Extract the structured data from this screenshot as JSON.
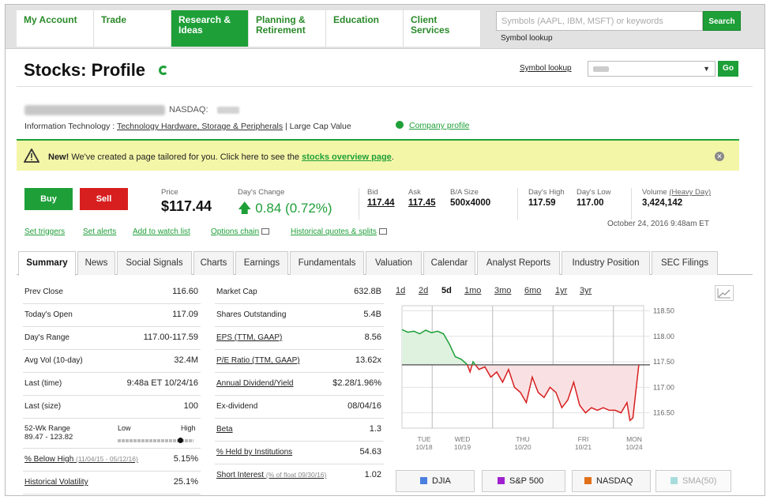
{
  "nav": {
    "items": [
      "My Account",
      "Trade",
      "Research & Ideas",
      "Planning & Retirement",
      "Education",
      "Client Services"
    ],
    "search_placeholder": "Symbols (AAPL, IBM, MSFT) or keywords",
    "search_button": "Search",
    "symbol_lookup": "Symbol lookup"
  },
  "header": {
    "title": "Stocks: Profile",
    "symbol_lookup": "Symbol lookup",
    "go": "Go"
  },
  "company": {
    "exchange": "NASDAQ:",
    "sector": "Information Technology :",
    "industry": "Technology Hardware, Storage & Peripherals",
    "cap": "| Large Cap Value",
    "profile_link": "Company profile"
  },
  "banner": {
    "new": "New!",
    "text": "We've created a page tailored for you. Click here to see the",
    "link": "stocks overview page",
    "end": "."
  },
  "quote": {
    "buy": "Buy",
    "sell": "Sell",
    "price_label": "Price",
    "price": "$117.44",
    "change_label": "Day's Change",
    "change": "0.84 (0.72%)",
    "bid_label": "Bid",
    "bid": "117.44",
    "ask_label": "Ask",
    "ask": "117.45",
    "ba_label": "B/A Size",
    "ba": "500x4000",
    "high_label": "Day's High",
    "high": "117.59",
    "low_label": "Day's Low",
    "low": "117.00",
    "vol_label": "Volume",
    "vol_link": "(Heavy Day)",
    "vol": "3,424,142",
    "date": "October 24, 2016 9:48am ET"
  },
  "links": [
    "Set triggers",
    "Set alerts",
    "Add to watch list",
    "Options chain",
    "Historical quotes & splits"
  ],
  "tabs": [
    "Summary",
    "News",
    "Social Signals",
    "Charts",
    "Earnings",
    "Fundamentals",
    "Valuation",
    "Calendar",
    "Analyst Reports",
    "Industry Position",
    "SEC Filings"
  ],
  "left_table": {
    "prev_close": [
      "Prev Close",
      "116.60"
    ],
    "open": [
      "Today's Open",
      "117.09"
    ],
    "range": [
      "Day's Range",
      "117.00-117.59"
    ],
    "avgvol": [
      "Avg Vol (10-day)",
      "32.4M"
    ],
    "last_time": [
      "Last (time)",
      "9:48a ET 10/24/16"
    ],
    "last_size": [
      "Last (size)",
      "100"
    ],
    "wk52_label": "52-Wk Range",
    "wk52_values": "89.47 - 123.82",
    "wk52_low": "Low",
    "wk52_high": "High",
    "wk52_position": 0.82,
    "below_high": [
      "% Below High",
      "(11/04/15 - 05/12/16)",
      "5.15%"
    ],
    "hist_vol": [
      "Historical Volatility",
      "25.1%"
    ]
  },
  "mid_table": {
    "mktcap": [
      "Market Cap",
      "632.8B"
    ],
    "shares": [
      "Shares Outstanding",
      "5.4B"
    ],
    "eps": [
      "EPS (TTM, GAAP)",
      "8.56"
    ],
    "pe": [
      "P/E Ratio (TTM, GAAP)",
      "13.62x"
    ],
    "div": [
      "Annual Dividend/Yield",
      "$2.28/1.96%"
    ],
    "exdiv": [
      "Ex-dividend",
      "08/04/16"
    ],
    "beta": [
      "Beta",
      "1.3"
    ],
    "held": [
      "% Held by Institutions",
      "54.63"
    ],
    "short": [
      "Short Interest",
      "(% of float 09/30/16)",
      "1.02"
    ]
  },
  "chart_ranges": [
    "1d",
    "2d",
    "5d",
    "1mo",
    "3mo",
    "6mo",
    "1yr",
    "3yr"
  ],
  "compare": [
    "DJIA",
    "S&P 500",
    "NASDAQ",
    "SMA(50)"
  ],
  "colors": {
    "green": "#1e9f38",
    "red": "#d71f1f",
    "djia": "#4a7fe0",
    "sp": "#a020d0",
    "nasdaq": "#e0701a",
    "sma": "#a8dcdc"
  },
  "chart_data": {
    "type": "line",
    "yticks": [
      "118.50",
      "118.00",
      "117.50",
      "117.00",
      "116.50"
    ],
    "ylim": [
      116.2,
      118.6
    ],
    "baseline": 117.44,
    "xlabels": [
      [
        "TUE",
        "10/18"
      ],
      [
        "WED",
        "10/19"
      ],
      [
        "THU",
        "10/20"
      ],
      [
        "FRI",
        "10/21"
      ],
      [
        "MON",
        "10/24"
      ]
    ],
    "series": [
      {
        "x": [
          0,
          0.1,
          0.2,
          0.3,
          0.4,
          0.5,
          0.6,
          0.7,
          0.8,
          0.9,
          1.0,
          1.1,
          1.15,
          1.2,
          1.3,
          1.4,
          1.5,
          1.6,
          1.7,
          1.8,
          1.9,
          2.0,
          2.1,
          2.2,
          2.3,
          2.4,
          2.5,
          2.6,
          2.7,
          2.8,
          2.9,
          3.0,
          3.1,
          3.2,
          3.3,
          3.4,
          3.5,
          3.6,
          3.7,
          3.8,
          3.85,
          3.9,
          4.0
        ],
        "y": [
          118.13,
          118.08,
          118.1,
          118.05,
          118.12,
          118.07,
          118.1,
          118.05,
          117.85,
          117.6,
          117.55,
          117.45,
          117.3,
          117.5,
          117.35,
          117.4,
          117.2,
          117.3,
          117.1,
          117.35,
          117.0,
          116.9,
          116.7,
          117.2,
          116.9,
          116.8,
          117.0,
          116.9,
          116.6,
          116.75,
          117.1,
          116.65,
          116.5,
          116.6,
          116.55,
          116.6,
          116.55,
          116.55,
          116.5,
          116.7,
          116.35,
          116.4,
          117.44
        ]
      }
    ]
  }
}
